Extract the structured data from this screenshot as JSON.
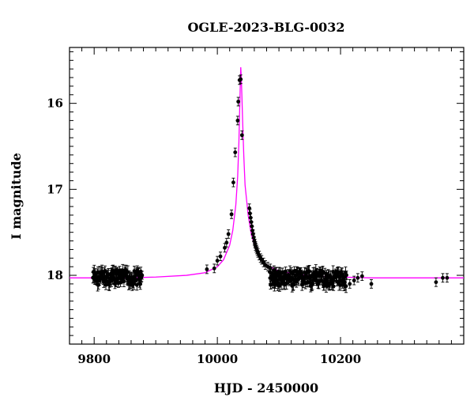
{
  "chart_data": {
    "type": "scatter",
    "title": "OGLE-2023-BLG-0032",
    "xlabel": "HJD - 2450000",
    "ylabel": "I magnitude",
    "xlim": [
      9760,
      10400
    ],
    "ylim": [
      18.8,
      15.35
    ],
    "y_inverted": true,
    "grid": false,
    "legend": "none",
    "x_ticks": [
      9800,
      10000,
      10200
    ],
    "y_ticks": [
      16,
      17,
      18
    ],
    "colors": {
      "data": "#000000",
      "model": "#ff00ff"
    },
    "model": {
      "name": "",
      "baseline_mag": 18.04,
      "peak_mag": 15.58,
      "t0": 10038,
      "x": [
        9760,
        9800,
        9850,
        9900,
        9950,
        9980,
        10000,
        10010,
        10020,
        10025,
        10030,
        10033,
        10035,
        10036,
        10037,
        10038,
        10039,
        10040,
        10041,
        10043,
        10045,
        10050,
        10055,
        10060,
        10070,
        10080,
        10100,
        10130,
        10160,
        10200,
        10250,
        10300,
        10400
      ],
      "y": [
        18.03,
        18.03,
        18.03,
        18.02,
        18.0,
        17.97,
        17.9,
        17.82,
        17.65,
        17.48,
        17.18,
        16.85,
        16.45,
        16.15,
        15.85,
        15.58,
        15.72,
        15.95,
        16.2,
        16.62,
        16.95,
        17.3,
        17.52,
        17.65,
        17.8,
        17.88,
        17.95,
        17.99,
        18.01,
        18.02,
        18.03,
        18.03,
        18.03
      ]
    },
    "series": [
      {
        "x": [
          9983,
          9995,
          10000,
          10005,
          10012,
          10015,
          10018,
          10023,
          10026,
          10029,
          10033,
          10034,
          10036,
          10038,
          10040,
          10052,
          10053,
          10054,
          10055,
          10056,
          10057,
          10058,
          10059,
          10060,
          10061,
          10062,
          10063,
          10064,
          10065,
          10066,
          10068,
          10070,
          10072,
          10075,
          10078,
          10082,
          10086,
          10092,
          10100,
          10215,
          10222,
          10228,
          10235,
          10250,
          10355,
          10366,
          10373
        ],
        "y": [
          17.93,
          17.92,
          17.83,
          17.78,
          17.68,
          17.62,
          17.52,
          17.29,
          16.92,
          16.57,
          16.2,
          15.98,
          15.73,
          15.72,
          16.37,
          17.22,
          17.28,
          17.33,
          17.38,
          17.43,
          17.48,
          17.52,
          17.56,
          17.6,
          17.63,
          17.66,
          17.68,
          17.7,
          17.72,
          17.74,
          17.77,
          17.8,
          17.82,
          17.85,
          17.88,
          17.9,
          17.92,
          17.94,
          17.96,
          18.1,
          18.06,
          18.03,
          18.01,
          18.1,
          18.08,
          18.03,
          18.03
        ],
        "yerr": 0.05
      }
    ],
    "seasons": [
      {
        "x_range": [
          9798,
          9878
        ],
        "center_mag": 18.03,
        "scatter": 0.09
      },
      {
        "x_range": [
          10085,
          10210
        ],
        "center_mag": 18.04,
        "scatter": 0.09
      }
    ]
  }
}
